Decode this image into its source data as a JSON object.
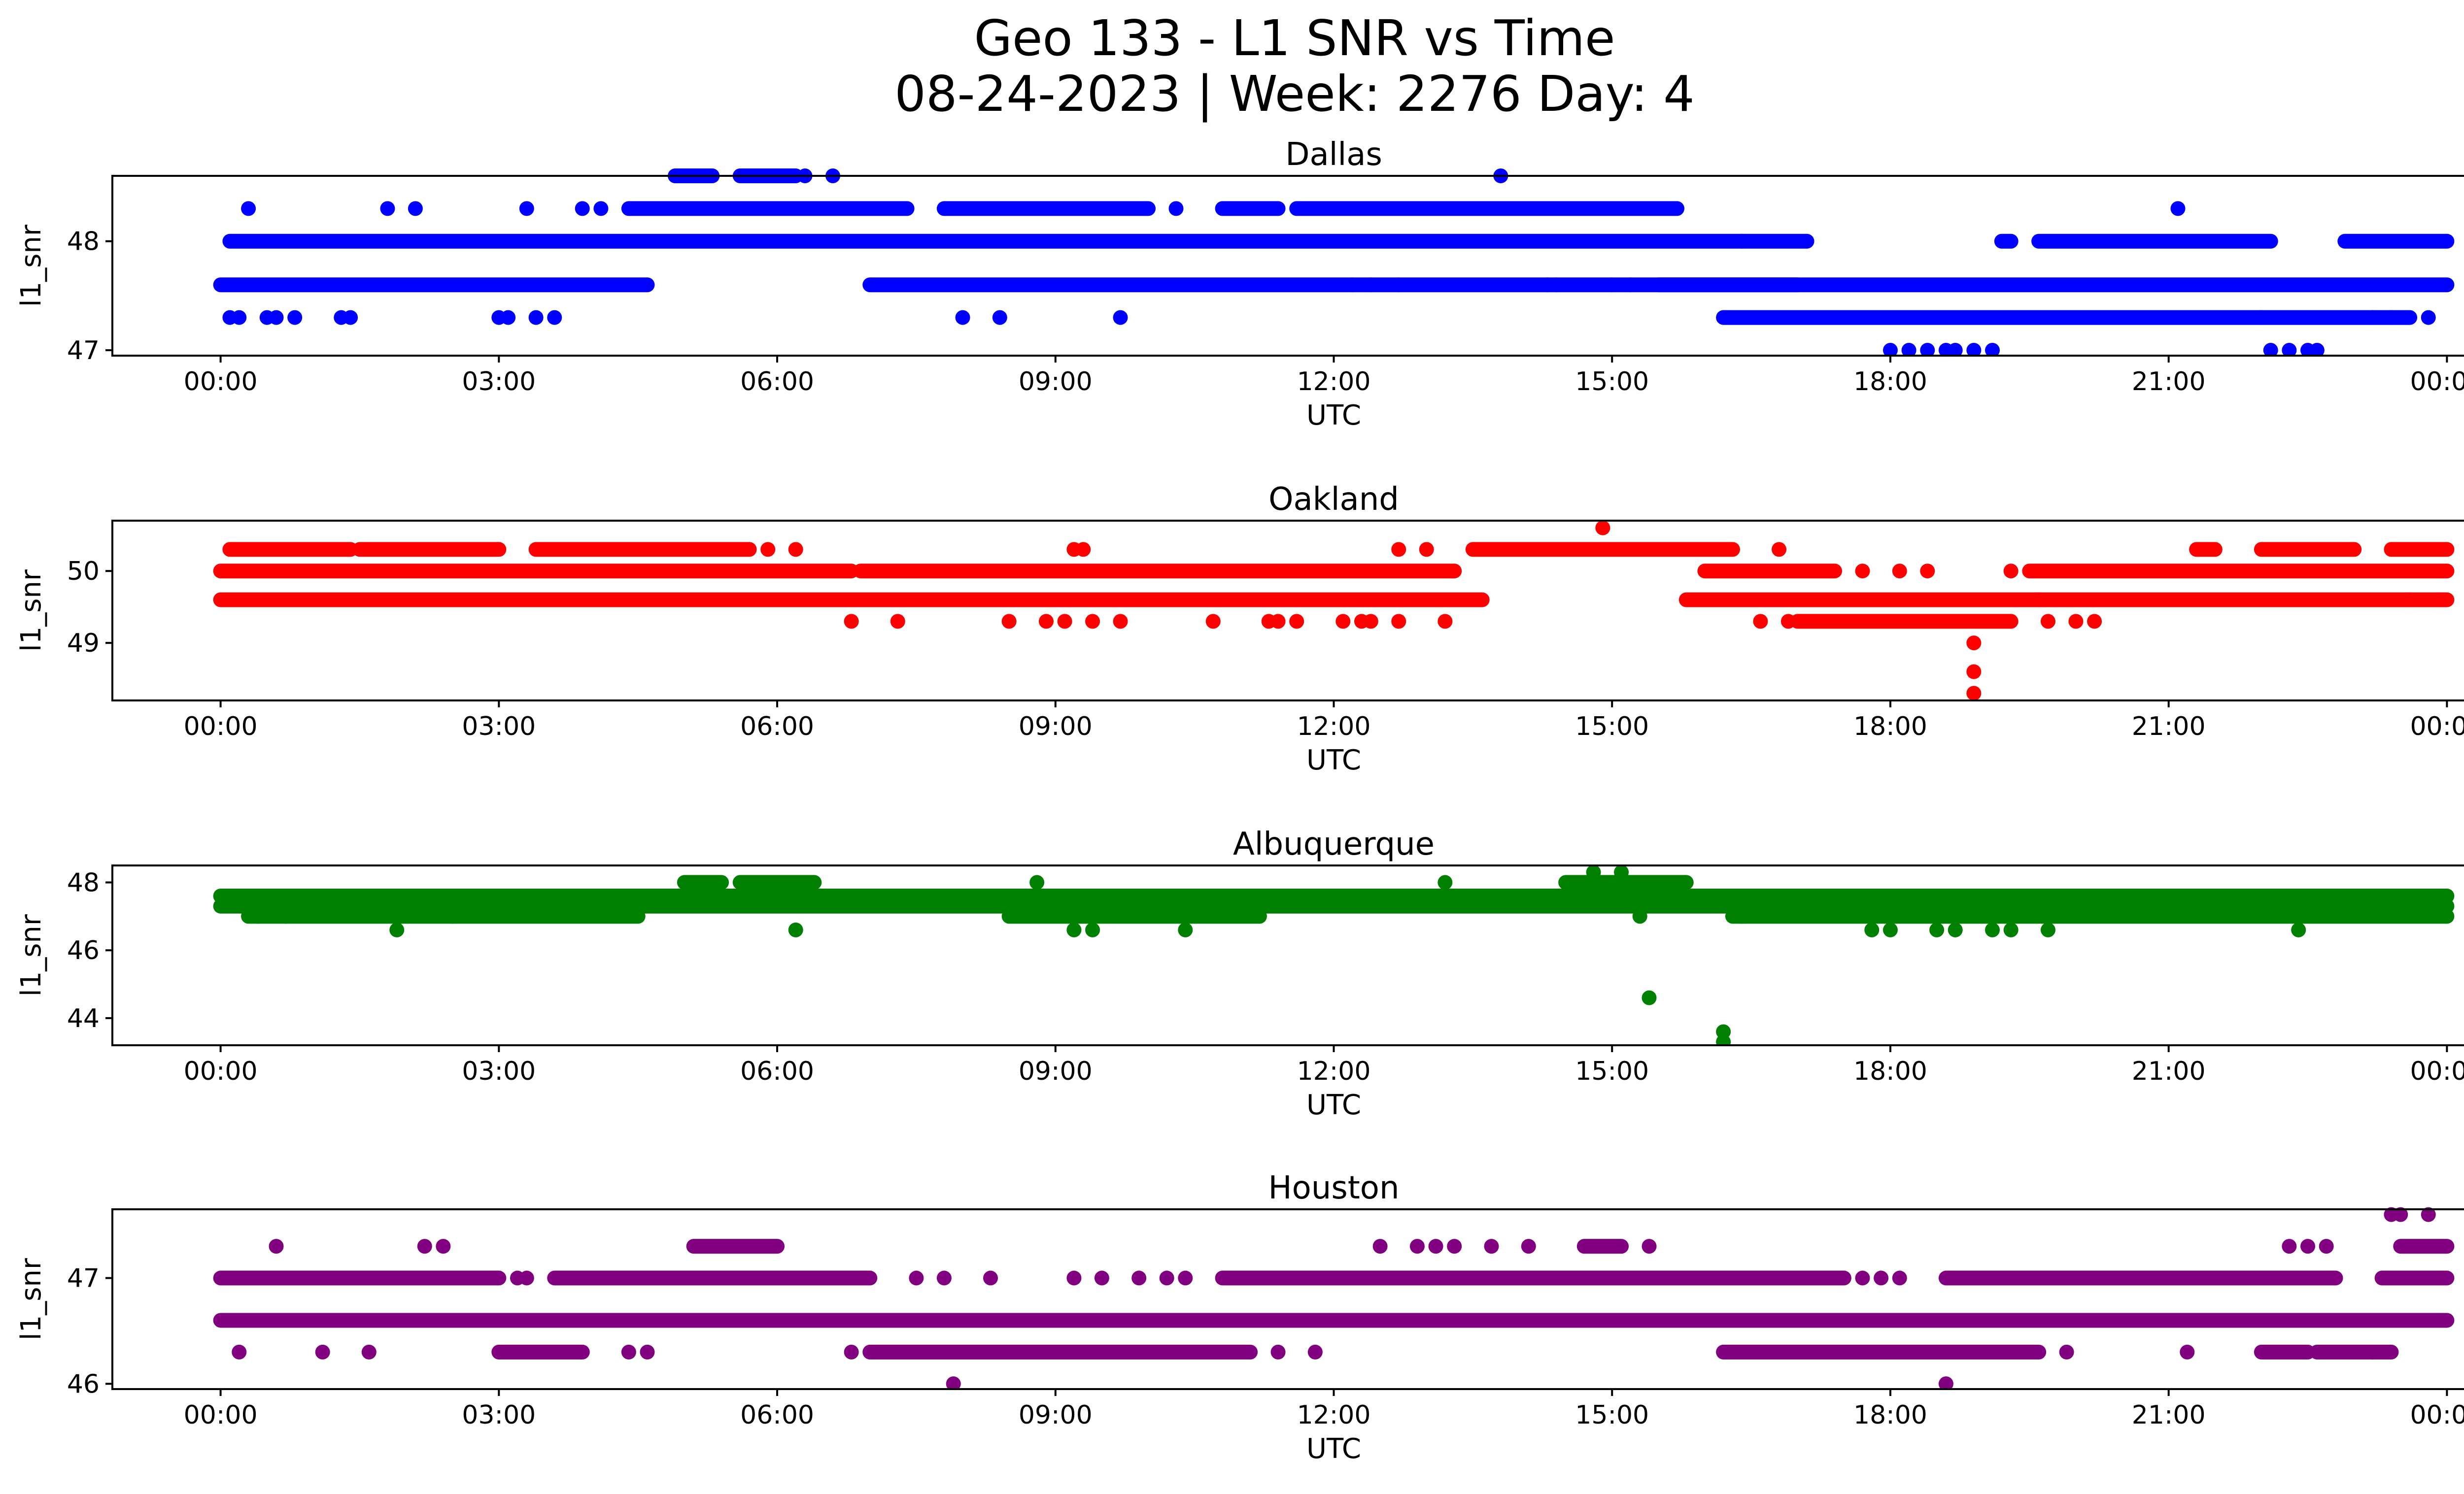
{
  "figure": {
    "title_line1": "Geo 133 - L1 SNR vs Time",
    "title_line2": "08-24-2023 | Week: 2276 Day: 4"
  },
  "chart_data": [
    {
      "type": "scatter",
      "title": "Dallas",
      "xlabel": "UTC",
      "ylabel": "l1_snr",
      "color": "#0000ff",
      "xlim": [
        "2023-08-23 22:50",
        "2023-08-25 01:10"
      ],
      "ylim": [
        46.95,
        48.6
      ],
      "yticks": [
        47,
        48
      ],
      "xticks": [
        "00:00",
        "03:00",
        "06:00",
        "09:00",
        "12:00",
        "15:00",
        "18:00",
        "21:00",
        "00:00"
      ],
      "bands": [
        {
          "y": 47.6,
          "ranges": [
            [
              0.0,
              4.6
            ],
            [
              7.0,
              17.0
            ],
            [
              15.5,
              24.0
            ]
          ]
        },
        {
          "y": 48.0,
          "ranges": [
            [
              0.1,
              16.4
            ],
            [
              16.4,
              17.1
            ],
            [
              19.2,
              19.3
            ],
            [
              19.6,
              22.1
            ],
            [
              22.9,
              24.0
            ]
          ]
        },
        {
          "y": 48.3,
          "ranges": [
            [
              4.4,
              7.4
            ],
            [
              7.8,
              10.0
            ],
            [
              10.8,
              11.4
            ],
            [
              11.6,
              15.7
            ]
          ]
        },
        {
          "y": 47.3,
          "ranges": [
            [
              16.2,
              22.0
            ],
            [
              22.0,
              23.6
            ]
          ]
        },
        {
          "y": 48.6,
          "ranges": [
            [
              4.9,
              5.3
            ],
            [
              5.6,
              6.2
            ]
          ]
        }
      ],
      "points": [
        [
          0.1,
          47.3
        ],
        [
          0.2,
          47.3
        ],
        [
          0.3,
          48.3
        ],
        [
          0.5,
          47.3
        ],
        [
          0.6,
          47.3
        ],
        [
          0.8,
          47.3
        ],
        [
          1.3,
          47.3
        ],
        [
          1.4,
          47.3
        ],
        [
          1.8,
          48.3
        ],
        [
          2.1,
          48.3
        ],
        [
          3.0,
          47.3
        ],
        [
          3.1,
          47.3
        ],
        [
          3.3,
          48.3
        ],
        [
          3.4,
          47.3
        ],
        [
          3.6,
          47.3
        ],
        [
          3.9,
          48.3
        ],
        [
          4.1,
          48.3
        ],
        [
          6.3,
          48.6
        ],
        [
          6.6,
          48.6
        ],
        [
          8.0,
          47.3
        ],
        [
          8.4,
          47.3
        ],
        [
          9.7,
          47.3
        ],
        [
          10.3,
          48.3
        ],
        [
          12.2,
          47.6
        ],
        [
          12.4,
          47.6
        ],
        [
          12.7,
          47.6
        ],
        [
          13.8,
          48.6
        ],
        [
          14.3,
          47.6
        ],
        [
          14.4,
          47.6
        ],
        [
          15.0,
          47.6
        ],
        [
          15.2,
          47.6
        ],
        [
          18.0,
          47.0
        ],
        [
          18.2,
          47.0
        ],
        [
          18.4,
          47.0
        ],
        [
          18.6,
          47.0
        ],
        [
          18.7,
          47.0
        ],
        [
          18.9,
          47.0
        ],
        [
          19.1,
          47.0
        ],
        [
          21.1,
          48.3
        ],
        [
          22.1,
          47.0
        ],
        [
          22.3,
          47.0
        ],
        [
          22.5,
          47.0
        ],
        [
          22.6,
          47.0
        ],
        [
          23.2,
          47.3
        ],
        [
          23.4,
          47.3
        ],
        [
          23.8,
          47.3
        ]
      ]
    },
    {
      "type": "scatter",
      "title": "Oakland",
      "xlabel": "UTC",
      "ylabel": "l1_snr",
      "color": "#ff0000",
      "xlim": [
        "2023-08-23 22:50",
        "2023-08-25 01:10"
      ],
      "ylim": [
        48.2,
        50.7
      ],
      "yticks": [
        49,
        50
      ],
      "xticks": [
        "00:00",
        "03:00",
        "06:00",
        "09:00",
        "12:00",
        "15:00",
        "18:00",
        "21:00",
        "00:00"
      ],
      "bands": [
        {
          "y": 50.0,
          "ranges": [
            [
              0.0,
              6.8
            ],
            [
              6.9,
              13.3
            ],
            [
              16.0,
              17.4
            ],
            [
              19.5,
              24.0
            ]
          ]
        },
        {
          "y": 49.6,
          "ranges": [
            [
              0.0,
              13.6
            ],
            [
              15.8,
              19.6
            ],
            [
              19.6,
              24.0
            ]
          ]
        },
        {
          "y": 50.3,
          "ranges": [
            [
              0.1,
              1.4
            ],
            [
              1.5,
              3.0
            ],
            [
              3.4,
              5.7
            ],
            [
              13.5,
              16.3
            ],
            [
              21.3,
              21.5
            ],
            [
              22.0,
              23.0
            ],
            [
              23.4,
              24.0
            ]
          ]
        },
        {
          "y": 49.3,
          "ranges": [
            [
              17.0,
              19.3
            ]
          ]
        }
      ],
      "points": [
        [
          5.9,
          50.3
        ],
        [
          6.2,
          50.3
        ],
        [
          6.8,
          49.3
        ],
        [
          7.3,
          49.3
        ],
        [
          8.5,
          49.3
        ],
        [
          8.9,
          49.3
        ],
        [
          9.1,
          49.3
        ],
        [
          9.2,
          50.3
        ],
        [
          9.3,
          50.3
        ],
        [
          9.4,
          49.3
        ],
        [
          9.7,
          49.3
        ],
        [
          10.7,
          49.3
        ],
        [
          11.3,
          49.3
        ],
        [
          11.4,
          49.3
        ],
        [
          11.6,
          49.3
        ],
        [
          12.1,
          49.3
        ],
        [
          12.3,
          49.3
        ],
        [
          12.4,
          49.3
        ],
        [
          12.7,
          50.3
        ],
        [
          12.7,
          49.3
        ],
        [
          13.0,
          50.3
        ],
        [
          13.2,
          49.3
        ],
        [
          14.9,
          50.6
        ],
        [
          16.6,
          49.3
        ],
        [
          16.8,
          50.3
        ],
        [
          16.9,
          49.3
        ],
        [
          17.7,
          50.0
        ],
        [
          18.1,
          50.0
        ],
        [
          18.4,
          50.0
        ],
        [
          18.9,
          49.0
        ],
        [
          18.9,
          48.6
        ],
        [
          18.9,
          48.3
        ],
        [
          19.3,
          50.0
        ],
        [
          19.7,
          49.3
        ],
        [
          20.0,
          49.3
        ],
        [
          20.2,
          49.3
        ],
        [
          23.6,
          49.6
        ],
        [
          23.9,
          49.6
        ]
      ]
    },
    {
      "type": "scatter",
      "title": "Albuquerque",
      "xlabel": "UTC",
      "ylabel": "l1_snr",
      "color": "#008000",
      "xlim": [
        "2023-08-23 22:50",
        "2023-08-25 01:10"
      ],
      "ylim": [
        43.2,
        48.5
      ],
      "yticks": [
        44,
        46,
        48
      ],
      "xticks": [
        "00:00",
        "03:00",
        "06:00",
        "09:00",
        "12:00",
        "15:00",
        "18:00",
        "21:00",
        "00:00"
      ],
      "bands": [
        {
          "y": 47.6,
          "ranges": [
            [
              0.0,
              24.0
            ]
          ]
        },
        {
          "y": 47.3,
          "ranges": [
            [
              0.0,
              24.0
            ]
          ]
        },
        {
          "y": 47.0,
          "ranges": [
            [
              0.3,
              4.5
            ],
            [
              8.5,
              11.2
            ],
            [
              16.3,
              24.0
            ]
          ]
        },
        {
          "y": 48.0,
          "ranges": [
            [
              5.0,
              5.4
            ],
            [
              5.6,
              6.4
            ],
            [
              14.5,
              15.8
            ]
          ]
        }
      ],
      "points": [
        [
          0.4,
          47.0
        ],
        [
          0.7,
          47.0
        ],
        [
          1.9,
          46.6
        ],
        [
          2.5,
          47.0
        ],
        [
          6.2,
          46.6
        ],
        [
          8.8,
          48.0
        ],
        [
          9.2,
          46.6
        ],
        [
          9.4,
          46.6
        ],
        [
          10.4,
          46.6
        ],
        [
          13.2,
          48.0
        ],
        [
          14.8,
          48.3
        ],
        [
          15.1,
          48.3
        ],
        [
          15.3,
          47.0
        ],
        [
          15.4,
          44.6
        ],
        [
          16.2,
          43.6
        ],
        [
          16.2,
          43.3
        ],
        [
          16.4,
          47.0
        ],
        [
          17.8,
          46.6
        ],
        [
          18.0,
          46.6
        ],
        [
          18.5,
          46.6
        ],
        [
          18.7,
          46.6
        ],
        [
          19.1,
          46.6
        ],
        [
          19.3,
          46.6
        ],
        [
          19.7,
          46.6
        ],
        [
          22.4,
          46.6
        ]
      ]
    },
    {
      "type": "scatter",
      "title": "Houston",
      "xlabel": "UTC",
      "ylabel": "l1_snr",
      "color": "#800080",
      "xlim": [
        "2023-08-23 22:50",
        "2023-08-25 01:10"
      ],
      "ylim": [
        45.95,
        47.65
      ],
      "yticks": [
        46,
        47
      ],
      "xticks": [
        "00:00",
        "03:00",
        "06:00",
        "09:00",
        "12:00",
        "15:00",
        "18:00",
        "21:00",
        "00:00"
      ],
      "bands": [
        {
          "y": 46.6,
          "ranges": [
            [
              0.0,
              24.0
            ]
          ]
        },
        {
          "y": 47.0,
          "ranges": [
            [
              0.0,
              3.0
            ],
            [
              3.6,
              7.0
            ],
            [
              10.8,
              17.5
            ],
            [
              18.6,
              22.8
            ],
            [
              23.3,
              24.0
            ]
          ]
        },
        {
          "y": 46.3,
          "ranges": [
            [
              3.0,
              3.9
            ],
            [
              7.0,
              11.1
            ],
            [
              16.2,
              19.6
            ],
            [
              22.0,
              22.5
            ],
            [
              22.6,
              23.4
            ]
          ]
        },
        {
          "y": 47.3,
          "ranges": [
            [
              5.1,
              6.0
            ],
            [
              14.7,
              15.1
            ],
            [
              23.5,
              24.0
            ]
          ]
        }
      ],
      "points": [
        [
          0.2,
          46.3
        ],
        [
          0.6,
          47.3
        ],
        [
          1.1,
          46.3
        ],
        [
          1.6,
          46.3
        ],
        [
          2.2,
          47.3
        ],
        [
          2.4,
          47.3
        ],
        [
          3.2,
          47.0
        ],
        [
          3.3,
          47.0
        ],
        [
          4.4,
          46.3
        ],
        [
          4.6,
          46.3
        ],
        [
          6.8,
          46.3
        ],
        [
          7.5,
          47.0
        ],
        [
          7.8,
          47.0
        ],
        [
          7.9,
          46.0
        ],
        [
          8.3,
          47.0
        ],
        [
          9.2,
          47.0
        ],
        [
          9.5,
          47.0
        ],
        [
          9.9,
          47.0
        ],
        [
          10.2,
          47.0
        ],
        [
          10.4,
          47.0
        ],
        [
          11.4,
          46.3
        ],
        [
          11.8,
          46.3
        ],
        [
          12.5,
          47.3
        ],
        [
          12.9,
          47.3
        ],
        [
          13.1,
          47.3
        ],
        [
          13.3,
          47.3
        ],
        [
          13.7,
          47.3
        ],
        [
          14.1,
          47.3
        ],
        [
          15.4,
          47.3
        ],
        [
          17.4,
          47.0
        ],
        [
          17.7,
          47.0
        ],
        [
          17.9,
          47.0
        ],
        [
          18.1,
          47.0
        ],
        [
          18.6,
          46.0
        ],
        [
          19.9,
          46.3
        ],
        [
          21.0,
          47.0
        ],
        [
          21.2,
          46.3
        ],
        [
          22.3,
          47.3
        ],
        [
          22.5,
          47.3
        ],
        [
          22.7,
          47.3
        ],
        [
          23.2,
          46.3
        ],
        [
          23.4,
          47.6
        ],
        [
          23.5,
          47.6
        ],
        [
          23.8,
          47.6
        ]
      ]
    }
  ]
}
